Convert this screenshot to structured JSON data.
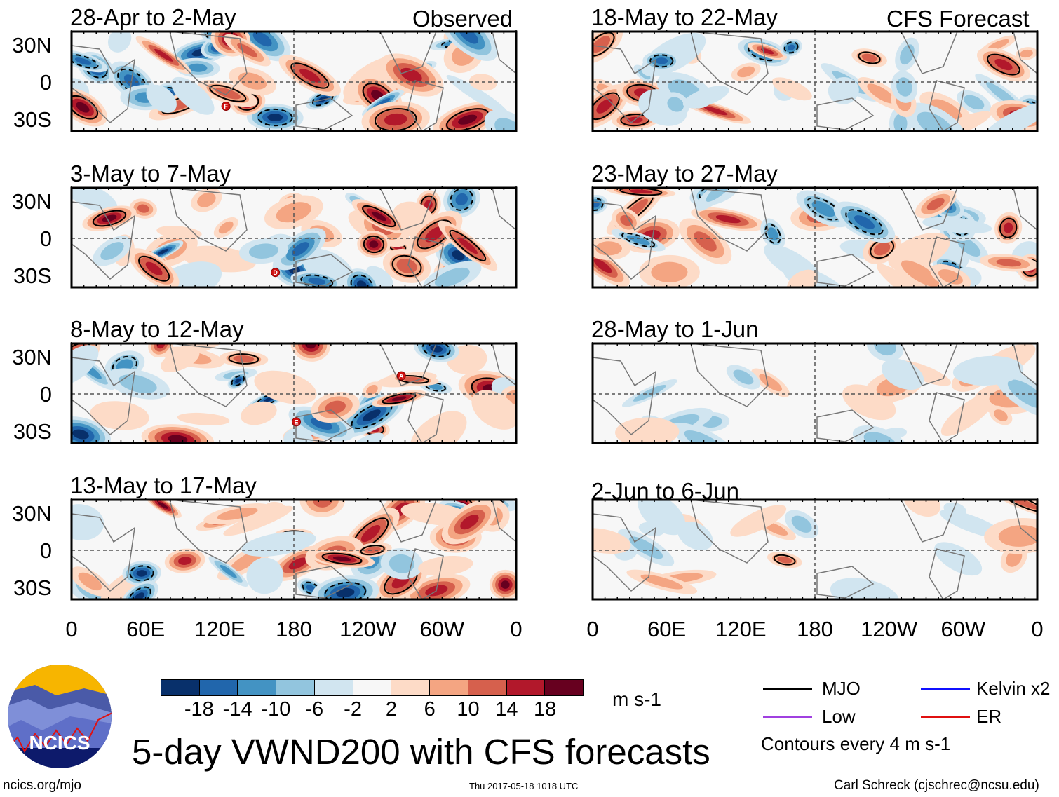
{
  "column_headers": {
    "left": "Observed",
    "right": "CFS Forecast"
  },
  "panels": [
    {
      "title": "28-Apr to 2-May",
      "column": "Observed",
      "storms": [
        {
          "label": "F",
          "lon": 125,
          "lat": -20
        }
      ]
    },
    {
      "title": "3-May to 7-May",
      "column": "Observed",
      "storms": [
        {
          "label": "D",
          "lon": 165,
          "lat": -28
        }
      ]
    },
    {
      "title": "8-May to 12-May",
      "column": "Observed",
      "storms": [
        {
          "label": "A",
          "lon": 267,
          "lat": 14
        },
        {
          "label": "E",
          "lon": 182,
          "lat": -23
        }
      ]
    },
    {
      "title": "13-May to 17-May",
      "column": "Observed",
      "storms": []
    },
    {
      "title": "18-May to 22-May",
      "column": "CFS Forecast",
      "storms": []
    },
    {
      "title": "23-May to 27-May",
      "column": "CFS Forecast",
      "storms": []
    },
    {
      "title": "28-May to 1-Jun",
      "column": "CFS Forecast",
      "storms": []
    },
    {
      "title": "2-Jun to 6-Jun",
      "column": "CFS Forecast",
      "storms": []
    }
  ],
  "chart_data": {
    "type": "heatmap",
    "title": "5-day VWND200 with CFS forecasts",
    "variable": "200 hPa meridional wind anomaly",
    "units": "m s-1",
    "x_ticks": [
      "0",
      "60E",
      "120E",
      "180",
      "120W",
      "60W",
      "0"
    ],
    "y_ticks": [
      "30N",
      "0",
      "30S"
    ],
    "xlim": [
      0,
      360
    ],
    "ylim": [
      -40,
      40
    ],
    "colorbar": {
      "labels": [
        "-18",
        "-14",
        "-10",
        "-6",
        "-2",
        "2",
        "6",
        "10",
        "14",
        "18"
      ],
      "colors": [
        "#08306b",
        "#2166ac",
        "#4393c3",
        "#92c5de",
        "#d1e5f0",
        "#f7f7f7",
        "#fddbc7",
        "#f4a582",
        "#d6604d",
        "#b2182b",
        "#67001f"
      ],
      "units": "m s-1"
    },
    "legend": [
      {
        "label": "MJO",
        "color": "#000000"
      },
      {
        "label": "Kelvin x2",
        "color": "#1010ff"
      },
      {
        "label": "Low",
        "color": "#a040e0"
      },
      {
        "label": "ER",
        "color": "#e01010"
      }
    ],
    "contour_note": "Contours every 4 m s-1"
  },
  "logo_text": "NCICS",
  "footer": {
    "url": "ncics.org/mjo",
    "timestamp": "Thu 2017-05-18 1018 UTC",
    "author": "Carl Schreck (cjschrec@ncsu.edu)"
  }
}
